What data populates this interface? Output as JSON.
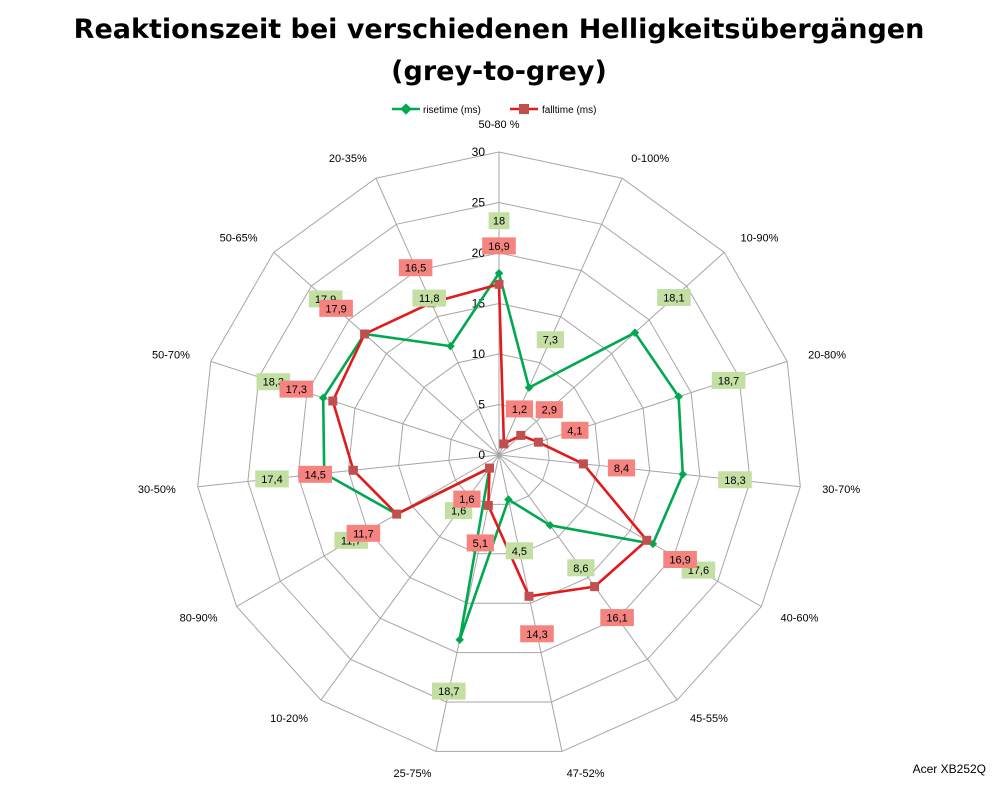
{
  "chart_data": {
    "type": "radar",
    "title_line1": "Reaktionszeit bei verschiedenen Helligkeitsübergängen",
    "title_line2": "(grey-to-grey)",
    "categories": [
      "50-80 %",
      "0-100%",
      "10-90%",
      "20-80%",
      "30-70%",
      "40-60%",
      "45-55%",
      "47-52%",
      "25-75%",
      "10-20%",
      "80-90%",
      "30-50%",
      "50-70%",
      "50-65%",
      "20-35%"
    ],
    "ticks": [
      "0",
      "5",
      "10",
      "15",
      "20",
      "25",
      "30"
    ],
    "rlim": [
      0,
      30
    ],
    "grid": true,
    "legend_position": "top",
    "series": [
      {
        "name": "risetime (ms)",
        "color": "#00a850",
        "label_bg": "#c4dfa4",
        "values": [
          18,
          7.3,
          18.1,
          18.7,
          18.3,
          17.6,
          8.6,
          4.5,
          18.7,
          1.6,
          11.7,
          17.4,
          18.3,
          17.9,
          11.8
        ],
        "labels": [
          "18",
          "7,3",
          "18,1",
          "18,7",
          "18,3",
          "17,6",
          "8,6",
          "4,5",
          "18,7",
          "1,6",
          "11,7",
          "17,4",
          "18,3",
          "17,9",
          "11,8"
        ]
      },
      {
        "name": "falltime (ms)",
        "color": "#e31a1c",
        "label_bg": "#f5837f",
        "values": [
          16.9,
          1.2,
          2.9,
          4.1,
          8.4,
          16.9,
          16.1,
          14.3,
          5.1,
          1.6,
          11.7,
          14.5,
          17.3,
          17.9,
          16.5
        ],
        "labels": [
          "16,9",
          "1,2",
          "2,9",
          "4,1",
          "8,4",
          "16,9",
          "16,1",
          "14,3",
          "5,1",
          "1,6",
          "11,7",
          "14,5",
          "17,3",
          "17,9",
          "16,5"
        ]
      }
    ]
  },
  "watermark": "Acer XB252Q"
}
